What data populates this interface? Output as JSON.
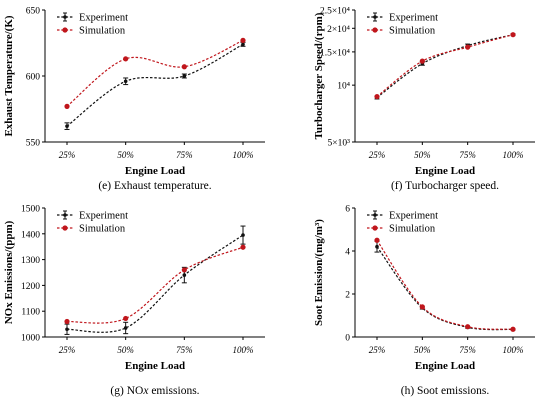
{
  "colors": {
    "experiment": "#111111",
    "simulation": "#c0161c"
  },
  "chart_data": [
    {
      "id": "e",
      "type": "line",
      "categories": [
        "25%",
        "50%",
        "75%",
        "100%"
      ],
      "series": [
        {
          "name": "Experiment",
          "values": [
            562,
            596,
            600,
            624
          ],
          "errors": [
            2.5,
            2.5,
            1.5,
            1.5
          ]
        },
        {
          "name": "Simulation",
          "values": [
            577,
            613,
            607,
            627
          ]
        }
      ],
      "xlabel": "Engine Load",
      "ylabel": "Exhaust Temperature/(K)",
      "ylim": [
        550,
        650
      ],
      "yscale": "linear",
      "yticks": [
        550,
        600,
        650
      ],
      "ytick_labels": [
        "550",
        "600",
        "650"
      ],
      "legend": "top-left",
      "caption": "(e) Exhaust temperature."
    },
    {
      "id": "f",
      "type": "line",
      "categories": [
        "25%",
        "50%",
        "75%",
        "100%"
      ],
      "series": [
        {
          "name": "Experiment",
          "values": [
            8600,
            13000,
            16200,
            18500
          ],
          "errors": [
            150,
            250,
            300,
            200
          ]
        },
        {
          "name": "Simulation",
          "values": [
            8700,
            13400,
            15900,
            18500
          ]
        }
      ],
      "xlabel": "Engine Load",
      "ylabel": "Turbocharger Speed/(rpm)",
      "ylim": [
        5000,
        25000
      ],
      "yscale": "log",
      "yticks": [
        5000,
        10000,
        15000,
        20000,
        25000
      ],
      "ytick_labels": [
        "5×10³",
        "10⁴",
        "1.5×10⁴",
        "2×10⁴",
        "2.5×10⁴"
      ],
      "legend": "top-left",
      "caption": "(f) Turbocharger speed."
    },
    {
      "id": "g",
      "type": "line",
      "categories": [
        "25%",
        "50%",
        "75%",
        "100%"
      ],
      "series": [
        {
          "name": "Experiment",
          "values": [
            1030,
            1035,
            1240,
            1395
          ],
          "errors": [
            20,
            22,
            30,
            35
          ]
        },
        {
          "name": "Simulation",
          "values": [
            1060,
            1072,
            1260,
            1348
          ]
        }
      ],
      "xlabel": "Engine Load",
      "ylabel": "NOx Emissions/(ppm)",
      "ylim": [
        1000,
        1500
      ],
      "yscale": "linear",
      "yticks": [
        1000,
        1100,
        1200,
        1300,
        1400,
        1500
      ],
      "ytick_labels": [
        "1000",
        "1100",
        "1200",
        "1300",
        "1400",
        "1500"
      ],
      "legend": "top-left",
      "caption": "(g) NOx emissions."
    },
    {
      "id": "h",
      "type": "line",
      "categories": [
        "25%",
        "50%",
        "75%",
        "100%"
      ],
      "series": [
        {
          "name": "Experiment",
          "values": [
            4.2,
            1.35,
            0.45,
            0.35
          ],
          "errors": [
            0.25,
            0.05,
            0.04,
            0.03
          ]
        },
        {
          "name": "Simulation",
          "values": [
            4.5,
            1.4,
            0.48,
            0.36
          ]
        }
      ],
      "xlabel": "Engine Load",
      "ylabel": "Soot Emission/(mg/m³)",
      "ylim": [
        0,
        6
      ],
      "yscale": "linear",
      "yticks": [
        0,
        2,
        4,
        6
      ],
      "ytick_labels": [
        "0",
        "2",
        "4",
        "6"
      ],
      "legend": "top-left",
      "caption": "(h) Soot emissions."
    }
  ]
}
